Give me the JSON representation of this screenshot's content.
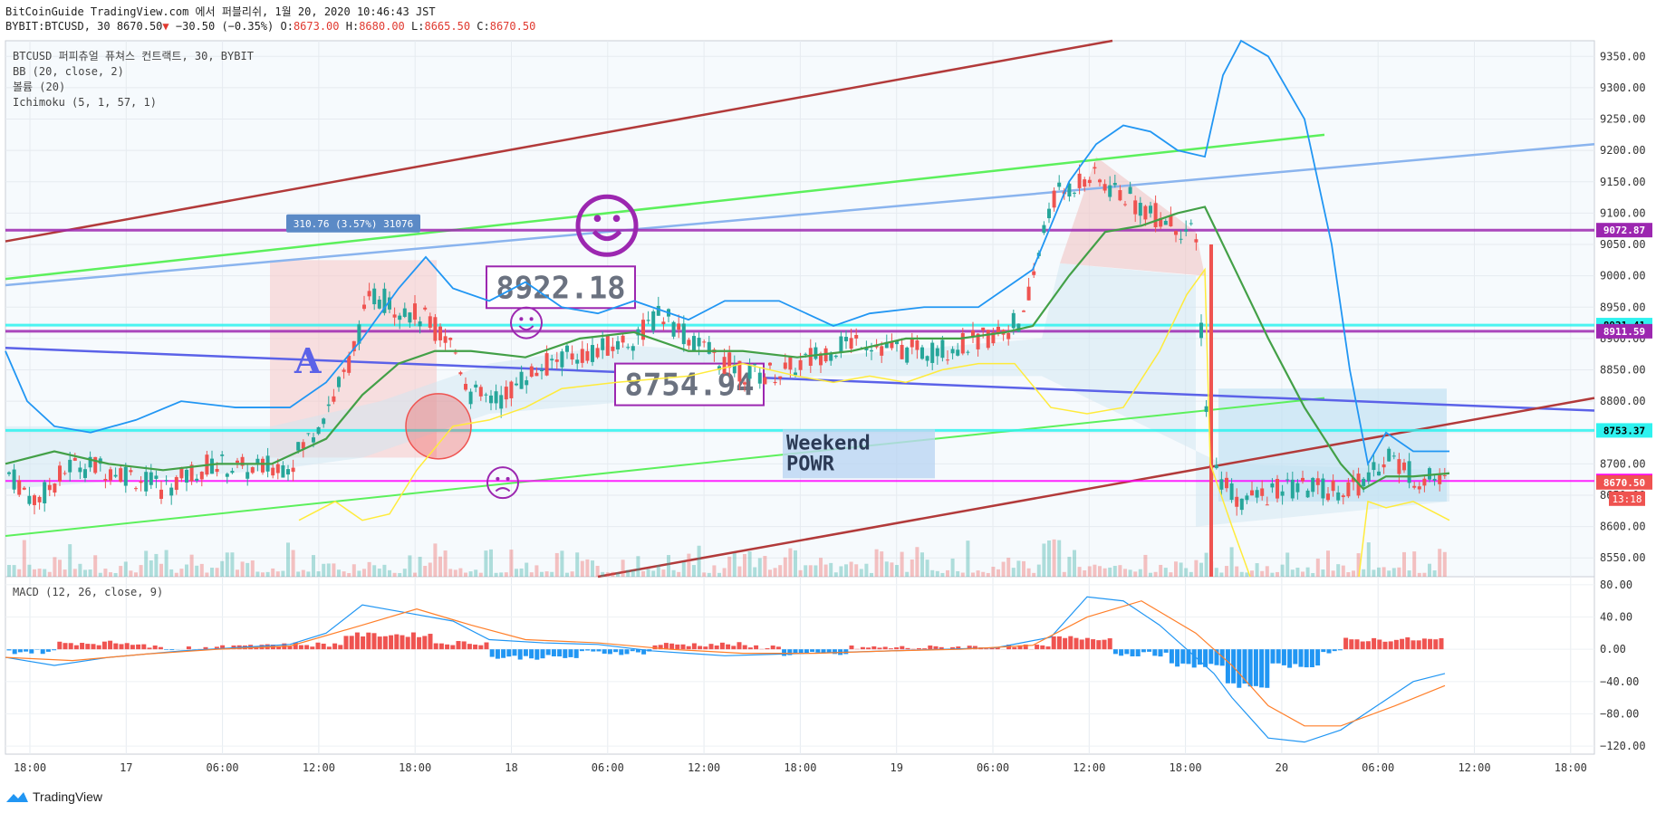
{
  "header": {
    "line1": "BitCoinGuide TradingView.com 에서 퍼블리쉬, 1월 20, 2020 10:46:43 JST",
    "symbol_interval": "BYBIT:BTCUSD, 30",
    "last": "8670.50",
    "change": "−30.50 (−0.35%)",
    "o_label": "O:",
    "o_val": "8673.00",
    "h_label": "H:",
    "h_val": "8680.00",
    "l_label": "L:",
    "l_val": "8665.50",
    "c_label": "C:",
    "c_val": "8670.50"
  },
  "legend": [
    "BTCUSD 퍼피츄얼 퓨쳐스 컨트랙트, 30, BYBIT",
    "BB (20, close, 2)",
    "볼륨 (20)",
    "Ichimoku (5, 1, 57, 1)"
  ],
  "macd_legend": "MACD (12, 26, close, 9)",
  "footer": {
    "brand": "TradingView"
  },
  "colors": {
    "up": "#26a69a",
    "down": "#ef5350",
    "bb": "#2196f3",
    "tenkan": "#43a047",
    "chikou": "#ffeb3b",
    "purple": "#9c27b0",
    "cyan": "#2ef2ef",
    "magenta": "#ff00ff",
    "lightgreen": "#5cf05c",
    "lightblue": "#8ab4ee",
    "darkred": "#b23a3a",
    "blueline": "#5b62e8"
  },
  "chart_data": {
    "type": "candlestick",
    "x_ticks": [
      "18:00",
      "17",
      "06:00",
      "12:00",
      "18:00",
      "18",
      "06:00",
      "12:00",
      "18:00",
      "19",
      "06:00",
      "12:00",
      "18:00",
      "20",
      "06:00",
      "12:00",
      "18:00"
    ],
    "y_ticks": [
      9350,
      9300,
      9250,
      9200,
      9150,
      9100,
      9050,
      9000,
      8950,
      8900,
      8850,
      8800,
      8750,
      8700,
      8650,
      8600,
      8550
    ],
    "ylim": [
      8520,
      9375
    ],
    "price_labels": [
      {
        "value": 9072.87,
        "text": "9072.87",
        "color": "#9c27b0"
      },
      {
        "value": 8921.41,
        "text": "8921.41",
        "color": "#2ef2ef"
      },
      {
        "value": 8911.59,
        "text": "8911.59",
        "color": "#9c27b0"
      },
      {
        "value": 8753.37,
        "text": "8753.37",
        "color": "#2ef2ef"
      },
      {
        "value": 8672.73,
        "text": "8672.73",
        "color": "#ff00ff"
      },
      {
        "value": 8670.5,
        "text": "8670.50",
        "color": "#ef5350"
      }
    ],
    "countdown": "13:18",
    "macd_y_ticks": [
      80.0,
      40.0,
      0.0,
      -40.0,
      -80.0,
      -120.0
    ],
    "macd_ylim": [
      -130,
      90
    ],
    "annotations": {
      "range_box": "310.76 (3.57%) 31076",
      "price_box_1": "8922.18",
      "price_box_2": "8754.94",
      "text_box": [
        "Weekend",
        "POWR"
      ],
      "letter": "A"
    },
    "horizontal_lines": [
      9072.87,
      8921.41,
      8911.59,
      8753.37,
      8672.73
    ]
  }
}
